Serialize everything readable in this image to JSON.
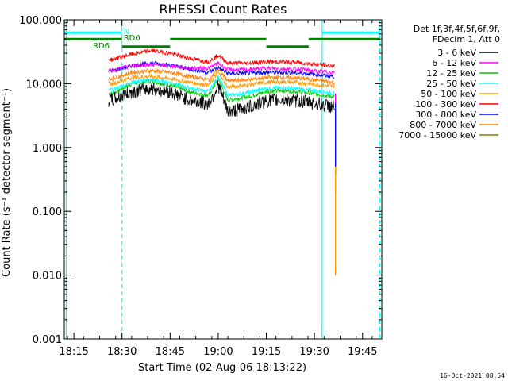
{
  "chart_data": {
    "type": "line",
    "title": "RHESSI Count Rates",
    "xlabel": "Start Time (02-Aug-06 18:13:22)",
    "ylabel": "Count Rate (s⁻¹ detector segment⁻¹)",
    "y_scale": "log",
    "ylim": [
      0.001,
      100
    ],
    "xlim_minutes": [
      18.2,
      19.85
    ],
    "x_ticks": [
      {
        "label": "18:15",
        "value": 18.25
      },
      {
        "label": "18:30",
        "value": 18.5
      },
      {
        "label": "18:45",
        "value": 18.75
      },
      {
        "label": "19:00",
        "value": 19.0
      },
      {
        "label": "19:15",
        "value": 19.25
      },
      {
        "label": "19:30",
        "value": 19.5
      },
      {
        "label": "19:45",
        "value": 19.75
      }
    ],
    "y_ticks": [
      {
        "label": "100.000",
        "value": 100
      },
      {
        "label": "10.000",
        "value": 10
      },
      {
        "label": "1.000",
        "value": 1
      },
      {
        "label": "0.100",
        "value": 0.1
      },
      {
        "label": "0.010",
        "value": 0.01
      },
      {
        "label": "0.001",
        "value": 0.001
      }
    ],
    "legend_header": [
      "Det 1f,3f,4f,5f,6f,9f,",
      "FDecim 1, Att 0"
    ],
    "series": [
      {
        "name": "3 - 6 keV",
        "color": "#000000",
        "shape": [
          [
            18.45,
            5.5
          ],
          [
            18.55,
            7.5
          ],
          [
            18.65,
            8.5
          ],
          [
            18.75,
            7.5
          ],
          [
            18.85,
            5.5
          ],
          [
            18.95,
            4.8
          ],
          [
            19.0,
            9.5
          ],
          [
            19.05,
            3.6
          ],
          [
            19.15,
            4.2
          ],
          [
            19.25,
            5.4
          ],
          [
            19.35,
            5.6
          ],
          [
            19.45,
            5.2
          ],
          [
            19.52,
            4.8
          ],
          [
            19.6,
            4.3
          ]
        ]
      },
      {
        "name": "6 - 12 keV",
        "color": "#ff00ff",
        "shape": [
          [
            18.45,
            16
          ],
          [
            18.55,
            19
          ],
          [
            18.65,
            20
          ],
          [
            18.75,
            19
          ],
          [
            18.85,
            17.5
          ],
          [
            18.95,
            17.5
          ],
          [
            19.0,
            21
          ],
          [
            19.05,
            16.5
          ],
          [
            19.15,
            16.5
          ],
          [
            19.25,
            17.5
          ],
          [
            19.35,
            17
          ],
          [
            19.45,
            16.5
          ],
          [
            19.52,
            15.5
          ],
          [
            19.6,
            15
          ]
        ]
      },
      {
        "name": "12 - 25 keV",
        "color": "#00cc00",
        "shape": [
          [
            18.45,
            7
          ],
          [
            18.55,
            10
          ],
          [
            18.65,
            11
          ],
          [
            18.75,
            9.5
          ],
          [
            18.85,
            7.5
          ],
          [
            18.95,
            6.5
          ],
          [
            19.0,
            12
          ],
          [
            19.05,
            5.5
          ],
          [
            19.15,
            6.2
          ],
          [
            19.25,
            7.5
          ],
          [
            19.35,
            7.8
          ],
          [
            19.45,
            7.3
          ],
          [
            19.52,
            6.8
          ],
          [
            19.6,
            6.2
          ]
        ]
      },
      {
        "name": "25 - 50 keV",
        "color": "#00ffff",
        "shape": [
          [
            18.45,
            8
          ],
          [
            18.55,
            10.5
          ],
          [
            18.65,
            11.5
          ],
          [
            18.75,
            10.5
          ],
          [
            18.85,
            8.5
          ],
          [
            18.95,
            7.5
          ],
          [
            19.0,
            13
          ],
          [
            19.05,
            6.5
          ],
          [
            19.15,
            7.2
          ],
          [
            19.25,
            8.5
          ],
          [
            19.35,
            8.6
          ],
          [
            19.45,
            8.1
          ],
          [
            19.52,
            7.6
          ],
          [
            19.6,
            7
          ]
        ]
      },
      {
        "name": "50 - 100 keV",
        "color": "#ff9900",
        "shape": [
          [
            18.45,
            10
          ],
          [
            18.55,
            12.5
          ],
          [
            18.65,
            13
          ],
          [
            18.75,
            12
          ],
          [
            18.85,
            10.5
          ],
          [
            18.95,
            9.5
          ],
          [
            19.0,
            15
          ],
          [
            19.05,
            8.8
          ],
          [
            19.15,
            9.5
          ],
          [
            19.25,
            10.5
          ],
          [
            19.35,
            10.7
          ],
          [
            19.45,
            10.2
          ],
          [
            19.52,
            9.6
          ],
          [
            19.6,
            9
          ]
        ]
      },
      {
        "name": "100 - 300 keV",
        "color": "#ff0000",
        "shape": [
          [
            18.45,
            24
          ],
          [
            18.55,
            29
          ],
          [
            18.65,
            33
          ],
          [
            18.75,
            30
          ],
          [
            18.85,
            25
          ],
          [
            18.95,
            22
          ],
          [
            19.0,
            28
          ],
          [
            19.05,
            21
          ],
          [
            19.15,
            21
          ],
          [
            19.25,
            22
          ],
          [
            19.35,
            22
          ],
          [
            19.45,
            21
          ],
          [
            19.52,
            20
          ],
          [
            19.6,
            19
          ]
        ]
      },
      {
        "name": "300 - 800 keV",
        "color": "#0000ff",
        "shape": [
          [
            18.45,
            16
          ],
          [
            18.55,
            19
          ],
          [
            18.65,
            21
          ],
          [
            18.75,
            19.5
          ],
          [
            18.85,
            17
          ],
          [
            18.95,
            15
          ],
          [
            19.0,
            18
          ],
          [
            19.05,
            14.5
          ],
          [
            19.15,
            14.5
          ],
          [
            19.25,
            15
          ],
          [
            19.35,
            15
          ],
          [
            19.45,
            14.5
          ],
          [
            19.52,
            13.8
          ],
          [
            19.6,
            13
          ]
        ]
      },
      {
        "name": "800 - 7000 keV",
        "color": "#ff8000",
        "shape": [
          [
            18.45,
            12
          ],
          [
            18.55,
            15
          ],
          [
            18.65,
            16
          ],
          [
            18.75,
            15
          ],
          [
            18.85,
            13
          ],
          [
            18.95,
            11.5
          ],
          [
            19.0,
            17
          ],
          [
            19.05,
            11
          ],
          [
            19.15,
            11.5
          ],
          [
            19.25,
            12.5
          ],
          [
            19.35,
            12.5
          ],
          [
            19.45,
            12
          ],
          [
            19.52,
            11.3
          ],
          [
            19.6,
            10.5
          ]
        ]
      },
      {
        "name": "7000 - 15000 keV",
        "color": "#808000",
        "shape": []
      }
    ],
    "flags": [
      {
        "label": "N",
        "color": "#00ffff",
        "segments": [
          [
            18.2,
            18.5
          ],
          [
            19.54,
            19.84
          ]
        ],
        "y": 63
      },
      {
        "label": "RD0",
        "color": "#008000",
        "segments": [
          [
            18.2,
            18.5
          ],
          [
            18.75,
            19.25
          ],
          [
            19.47,
            19.84
          ]
        ],
        "y": 50
      },
      {
        "label": "RD6",
        "color": "#008000",
        "segments": [
          [
            18.5,
            18.75
          ],
          [
            19.25,
            19.47
          ]
        ],
        "y": 38
      }
    ],
    "vertical_lines": [
      {
        "x": 18.21,
        "style": "solid",
        "color": "#00ffff"
      },
      {
        "x": 18.5,
        "style": "dashed",
        "color": "#00ffff"
      },
      {
        "x": 19.54,
        "style": "solid",
        "color": "#00ffff"
      },
      {
        "x": 19.84,
        "style": "dashed",
        "color": "#00ffff"
      }
    ],
    "data_start": 18.43,
    "data_end": 19.605,
    "timestamp": "16-Oct-2021 08:54",
    "grid": false,
    "legend_placement": "right"
  }
}
